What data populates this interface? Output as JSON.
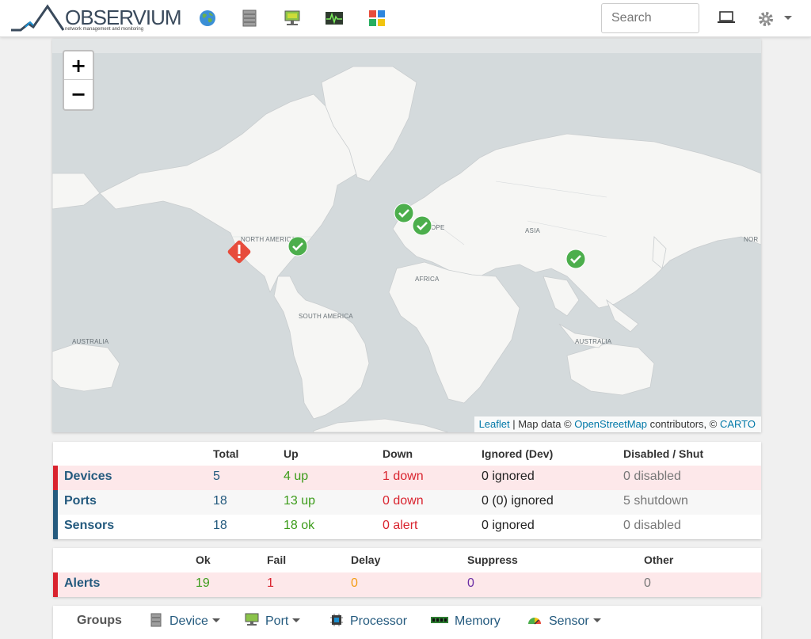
{
  "brand": {
    "name": "OBSERVIUM",
    "tagline": "network management and monitoring"
  },
  "search": {
    "placeholder": "Search"
  },
  "nav_icons": [
    "globe-icon",
    "server-rack-icon",
    "network-port-icon",
    "health-graph-icon",
    "apps-grid-icon"
  ],
  "map": {
    "zoom_in": "+",
    "zoom_out": "−",
    "labels": {
      "north_america": "NORTH AMERICA",
      "south_america": "SOUTH AMERICA",
      "europe": "OPE",
      "africa": "AFRICA",
      "asia": "ASIA",
      "australia_left": "AUSTRALIA",
      "australia_right": "AUSTRALIA",
      "nor_right": "NOR"
    },
    "attribution": {
      "leaflet": "Leaflet",
      "sep1": " | Map data © ",
      "osm": "OpenStreetMap",
      "sep2": " contributors, © ",
      "carto": "CARTO"
    },
    "markers": [
      {
        "status": "down",
        "icon": "alert-marker-icon"
      },
      {
        "status": "up",
        "icon": "check-marker-icon"
      },
      {
        "status": "up",
        "icon": "check-marker-icon"
      },
      {
        "status": "up",
        "icon": "check-marker-icon"
      },
      {
        "status": "up",
        "icon": "check-marker-icon"
      }
    ]
  },
  "status_table": {
    "headers": [
      "Total",
      "Up",
      "Down",
      "Ignored (Dev)",
      "Disabled / Shut"
    ],
    "rows": [
      {
        "label": "Devices",
        "total": "5",
        "up": "4 up",
        "down": "1 down",
        "ignored": "0 ignored",
        "disabled": "0 disabled"
      },
      {
        "label": "Ports",
        "total": "18",
        "up": "13 up",
        "down": "0 down",
        "ignored": "0 (0) ignored",
        "disabled": "5 shutdown"
      },
      {
        "label": "Sensors",
        "total": "18",
        "up": "18 ok",
        "down": "0 alert",
        "ignored": "0 ignored",
        "disabled": "0 disabled"
      }
    ]
  },
  "alerts_table": {
    "headers": [
      "Ok",
      "Fail",
      "Delay",
      "Suppress",
      "Other"
    ],
    "row": {
      "label": "Alerts",
      "ok": "19",
      "fail": "1",
      "delay": "0",
      "suppress": "0",
      "other": "0"
    }
  },
  "groups": {
    "label": "Groups",
    "items": [
      {
        "label": "Device",
        "dropdown": true
      },
      {
        "label": "Port",
        "dropdown": true
      },
      {
        "label": "Processor",
        "dropdown": false
      },
      {
        "label": "Memory",
        "dropdown": false
      },
      {
        "label": "Sensor",
        "dropdown": true
      }
    ]
  },
  "colors": {
    "status_red": "#d9232e",
    "status_blue": "#245a7e",
    "ok_green": "#3c9c1a",
    "marker_green": "#4cae4c",
    "marker_red": "#e74c3c"
  }
}
